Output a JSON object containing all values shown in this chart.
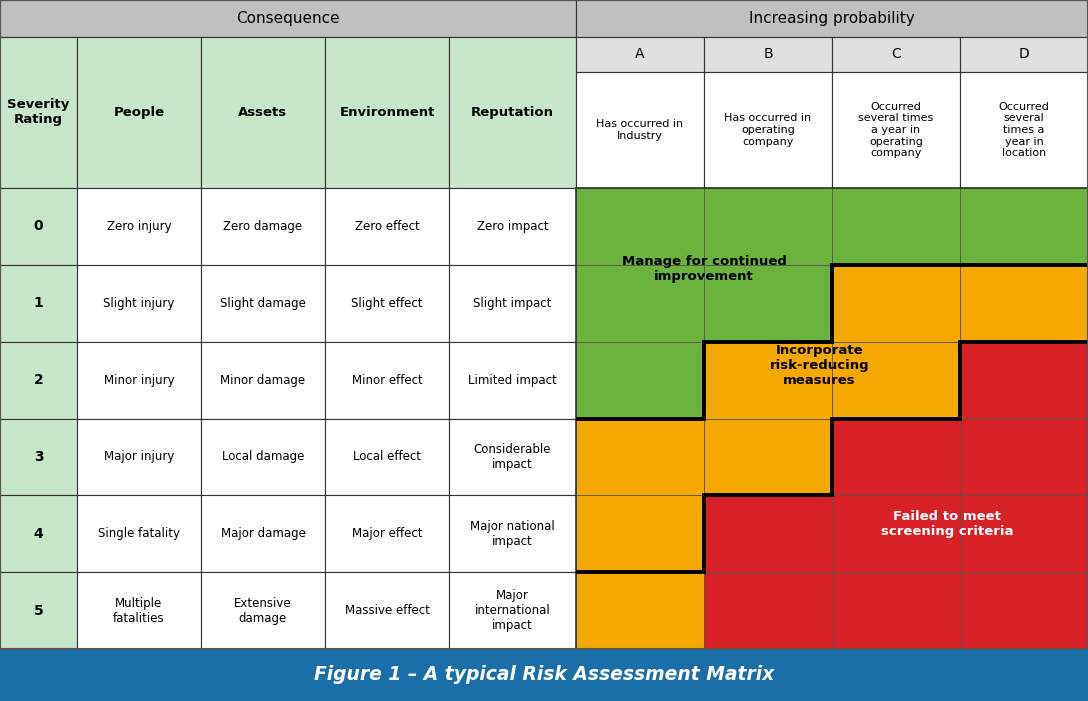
{
  "title": "Figure 1 – A typical Risk Assessment Matrix",
  "title_color": "#ffffff",
  "title_bg": "#1a6fa8",
  "header_top_bg": "#c0c0c0",
  "cell_bg_sev": "#c8e6c9",
  "cell_bg_white": "#ffffff",
  "border_color": "#333333",
  "fig_bg": "#ffffff",
  "consequence_label": "Consequence",
  "probability_label": "Increasing probability",
  "severity_label": "Severity\nRating",
  "col_headers": [
    "People",
    "Assets",
    "Environment",
    "Reputation"
  ],
  "prob_letters": [
    "A",
    "B",
    "C",
    "D"
  ],
  "prob_descriptions": [
    "Has occurred in\nIndustry",
    "Has occurred in\noperating\ncompany",
    "Occurred\nseveral times\na year in\noperating\ncompany",
    "Occurred\nseveral\ntimes a\nyear in\nlocation"
  ],
  "severity_ratings": [
    "0",
    "1",
    "2",
    "3",
    "4",
    "5"
  ],
  "people_col": [
    "Zero injury",
    "Slight injury",
    "Minor injury",
    "Major injury",
    "Single fatality",
    "Multiple\nfatalities"
  ],
  "assets_col": [
    "Zero damage",
    "Slight damage",
    "Minor damage",
    "Local damage",
    "Major damage",
    "Extensive\ndamage"
  ],
  "env_col": [
    "Zero effect",
    "Slight effect",
    "Minor effect",
    "Local effect",
    "Major effect",
    "Massive effect"
  ],
  "rep_col": [
    "Zero impact",
    "Slight impact",
    "Limited impact",
    "Considerable\nimpact",
    "Major national\nimpact",
    "Major\ninternational\nimpact"
  ],
  "green_color": "#6cb33e",
  "yellow_color": "#f5a800",
  "red_color": "#d82027",
  "green_label": "Manage for continued\nimprovement",
  "yellow_label": "Incorporate\nrisk-reducing\nmeasures",
  "red_label": "Failed to meet\nscreening criteria",
  "color_map": [
    [
      "G",
      "G",
      "G",
      "G"
    ],
    [
      "G",
      "G",
      "Y",
      "Y"
    ],
    [
      "G",
      "Y",
      "Y",
      "R"
    ],
    [
      "Y",
      "Y",
      "R",
      "R"
    ],
    [
      "Y",
      "R",
      "R",
      "R"
    ],
    [
      "Y",
      "R",
      "R",
      "R"
    ]
  ]
}
